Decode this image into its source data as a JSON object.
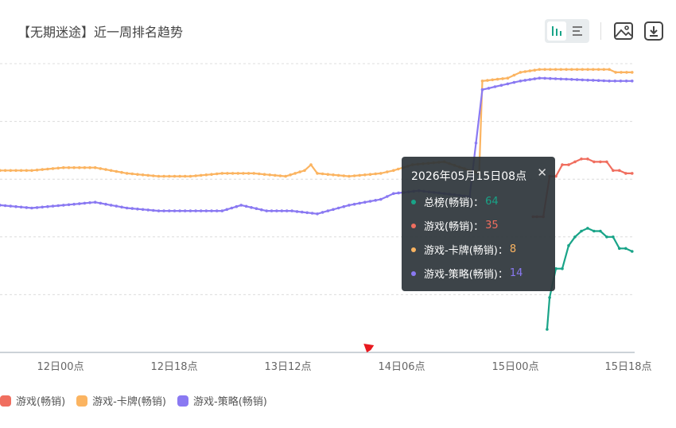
{
  "title": "【无期迷途】近一周排名趋势",
  "toolbar": {
    "icons": [
      "bar-chart-icon",
      "list-icon",
      "image-download-icon",
      "download-icon"
    ]
  },
  "chart_data": {
    "type": "line",
    "x": [
      "12日00点",
      "12日18点",
      "13日12点",
      "14日06点",
      "15日00点",
      "15日18点"
    ],
    "x_ticks": [
      "12日00点",
      "12日18点",
      "13日12点",
      "14日06点",
      "15日00点",
      "15日18点"
    ],
    "ylim": [
      0,
      100
    ],
    "y_inverted": true,
    "grid": true,
    "series": [
      {
        "name": "总榜(畅销)",
        "color": "#19a488",
        "points": [
          [
            0.862,
            92
          ],
          [
            0.866,
            81
          ],
          [
            0.876,
            71
          ],
          [
            0.886,
            71
          ],
          [
            0.896,
            63
          ],
          [
            0.906,
            60
          ],
          [
            0.916,
            58
          ],
          [
            0.926,
            57
          ],
          [
            0.936,
            58
          ],
          [
            0.946,
            58
          ],
          [
            0.956,
            60
          ],
          [
            0.966,
            60
          ],
          [
            0.976,
            64
          ],
          [
            0.986,
            64
          ],
          [
            0.996,
            65
          ]
        ]
      },
      {
        "name": "游戏(畅销)",
        "color": "#f06e5f",
        "points": [
          [
            0.84,
            53
          ],
          [
            0.846,
            53
          ],
          [
            0.856,
            53
          ],
          [
            0.866,
            39
          ],
          [
            0.876,
            39
          ],
          [
            0.886,
            35
          ],
          [
            0.896,
            35
          ],
          [
            0.906,
            34
          ],
          [
            0.916,
            33
          ],
          [
            0.926,
            33
          ],
          [
            0.936,
            34
          ],
          [
            0.946,
            34
          ],
          [
            0.956,
            34
          ],
          [
            0.966,
            37
          ],
          [
            0.976,
            37
          ],
          [
            0.986,
            38
          ],
          [
            0.996,
            38
          ]
        ]
      },
      {
        "name": "游戏-卡牌(畅销)",
        "color": "#fbb461",
        "points": [
          [
            0.0,
            37
          ],
          [
            0.05,
            37
          ],
          [
            0.1,
            36
          ],
          [
            0.15,
            36
          ],
          [
            0.2,
            38
          ],
          [
            0.25,
            39
          ],
          [
            0.3,
            39
          ],
          [
            0.35,
            38
          ],
          [
            0.4,
            38
          ],
          [
            0.45,
            39
          ],
          [
            0.48,
            37
          ],
          [
            0.49,
            35
          ],
          [
            0.5,
            38
          ],
          [
            0.55,
            39
          ],
          [
            0.6,
            38
          ],
          [
            0.62,
            37
          ],
          [
            0.65,
            35
          ],
          [
            0.7,
            34
          ],
          [
            0.74,
            37
          ],
          [
            0.755,
            38
          ],
          [
            0.76,
            6
          ],
          [
            0.8,
            5
          ],
          [
            0.82,
            3
          ],
          [
            0.85,
            2
          ],
          [
            0.96,
            2
          ],
          [
            0.97,
            3
          ],
          [
            0.996,
            3
          ]
        ]
      },
      {
        "name": "游戏-策略(畅销)",
        "color": "#8a79f2",
        "points": [
          [
            0.0,
            49
          ],
          [
            0.05,
            50
          ],
          [
            0.1,
            49
          ],
          [
            0.15,
            48
          ],
          [
            0.2,
            50
          ],
          [
            0.25,
            51
          ],
          [
            0.3,
            51
          ],
          [
            0.35,
            51
          ],
          [
            0.38,
            49
          ],
          [
            0.42,
            51
          ],
          [
            0.46,
            51
          ],
          [
            0.5,
            52
          ],
          [
            0.55,
            49
          ],
          [
            0.6,
            47
          ],
          [
            0.62,
            45
          ],
          [
            0.66,
            44
          ],
          [
            0.7,
            45
          ],
          [
            0.74,
            46
          ],
          [
            0.76,
            9
          ],
          [
            0.78,
            8
          ],
          [
            0.8,
            7
          ],
          [
            0.82,
            6
          ],
          [
            0.85,
            5
          ],
          [
            0.96,
            6
          ],
          [
            0.996,
            6
          ]
        ]
      }
    ],
    "event_flag": {
      "position": 0.578,
      "color": "#e8191f",
      "icon": "flag-icon"
    }
  },
  "tooltip": {
    "date": "2026年05月15日08点",
    "rows": [
      {
        "label": "总榜(畅销)：",
        "value": "64",
        "color": "#19a488"
      },
      {
        "label": "游戏(畅销)：",
        "value": "35",
        "color": "#f06e5f"
      },
      {
        "label": "游戏-卡牌(畅销)：",
        "value": "8",
        "color": "#fbb461"
      },
      {
        "label": "游戏-策略(畅销)：",
        "value": "14",
        "color": "#8a79f2"
      }
    ]
  },
  "legend": [
    {
      "label": "游戏(畅销)",
      "color": "#f06e5f"
    },
    {
      "label": "游戏-卡牌(畅销)",
      "color": "#fbb461"
    },
    {
      "label": "游戏-策略(畅销)",
      "color": "#8a79f2"
    }
  ]
}
